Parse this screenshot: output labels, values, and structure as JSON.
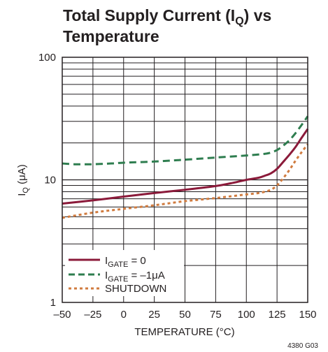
{
  "chart_data": {
    "type": "line",
    "title_parts": [
      "Total Supply Current (I",
      "Q",
      ") vs"
    ],
    "title_line2": "Temperature",
    "xlabel": "TEMPERATURE (°C)",
    "ylabel_parts": [
      "I",
      "Q",
      " (μA)"
    ],
    "x_ticks": [
      "–50",
      "–25",
      "0",
      "25",
      "50",
      "75",
      "100",
      "125",
      "150"
    ],
    "y_ticks": [
      "1",
      "10",
      "100"
    ],
    "xlim": [
      -50,
      150
    ],
    "ylim": [
      1,
      100
    ],
    "y_scale": "log",
    "grid": true,
    "legend_position": "bottom-left",
    "figure_id": "4380 G03",
    "series": [
      {
        "name_parts": [
          "I",
          "GATE",
          " = 0"
        ],
        "color": "#8b1a3a",
        "style": "solid",
        "x": [
          -50,
          -25,
          0,
          25,
          50,
          75,
          90,
          100,
          110,
          115,
          120,
          125,
          130,
          135,
          140,
          145,
          150
        ],
        "values": [
          6.4,
          6.8,
          7.3,
          7.8,
          8.3,
          8.9,
          9.5,
          10.0,
          10.4,
          10.8,
          11.3,
          12.3,
          14.0,
          16.0,
          18.5,
          22.0,
          26.0
        ]
      },
      {
        "name_parts": [
          "I",
          "GATE",
          " = –1μA"
        ],
        "color": "#2e7d4f",
        "style": "dashed",
        "x": [
          -50,
          -40,
          -30,
          -25,
          -10,
          0,
          25,
          50,
          75,
          100,
          115,
          120,
          125,
          130,
          135,
          140,
          145,
          150
        ],
        "values": [
          13.6,
          13.4,
          13.4,
          13.4,
          13.6,
          13.8,
          14.1,
          14.6,
          15.2,
          15.8,
          16.3,
          16.7,
          17.5,
          19.0,
          21.0,
          24.0,
          28.0,
          33.0
        ]
      },
      {
        "name_parts": [
          "SHUTDOWN"
        ],
        "color": "#d07b3f",
        "style": "dotted",
        "x": [
          -50,
          -25,
          0,
          25,
          50,
          75,
          100,
          110,
          115,
          120,
          125,
          130,
          135,
          140,
          145,
          150
        ],
        "values": [
          4.9,
          5.4,
          5.8,
          6.2,
          6.7,
          7.1,
          7.6,
          7.8,
          8.0,
          8.3,
          9.0,
          10.3,
          12.0,
          14.3,
          16.8,
          19.5
        ]
      }
    ]
  }
}
